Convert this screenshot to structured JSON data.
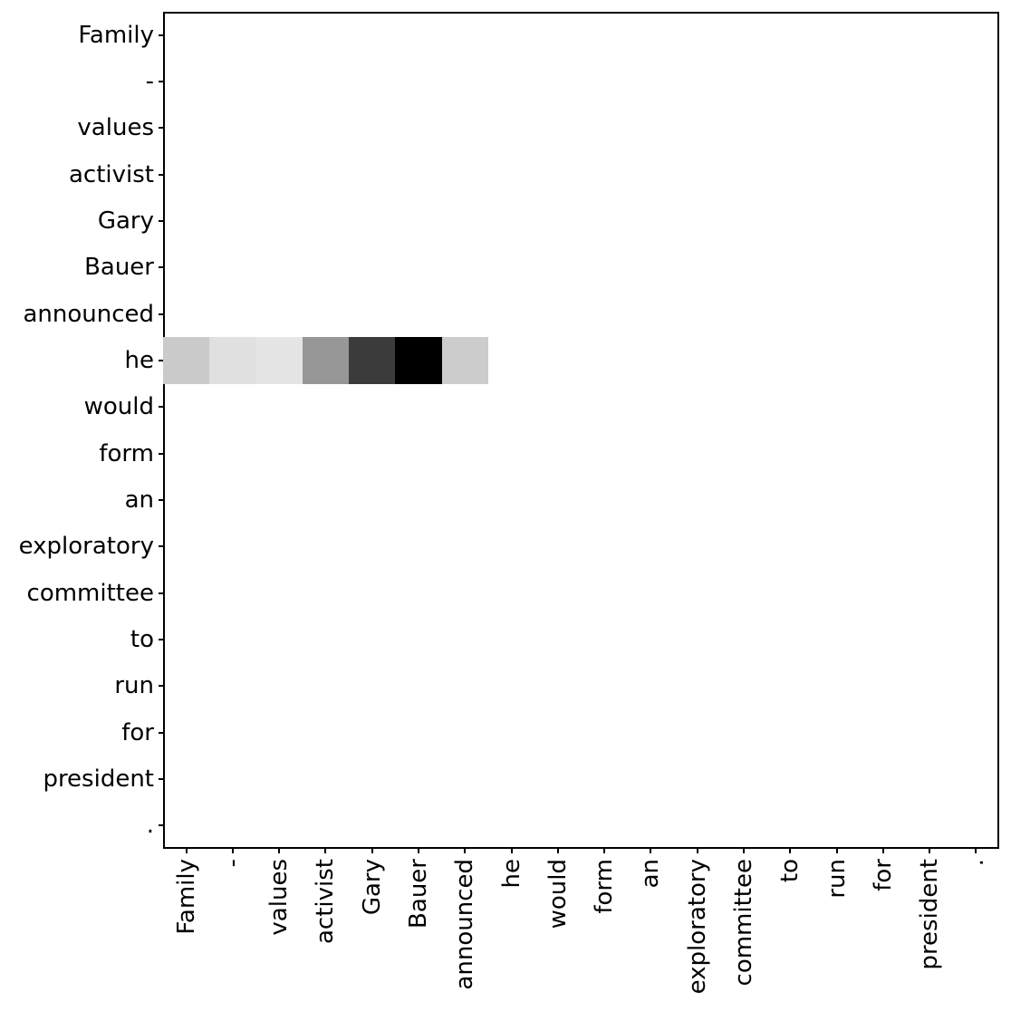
{
  "figure": {
    "background_color": "#ffffff",
    "axis_line_color": "#000000",
    "text_color": "#000000"
  },
  "chart_data": {
    "type": "heatmap",
    "title": "",
    "xlabel": "",
    "ylabel": "",
    "n_rows": 18,
    "n_cols": 18,
    "grid": false,
    "colormap": "Greys",
    "empty_cell_color": "#ffffff",
    "x_tokens": [
      "Family",
      "-",
      "values",
      "activist",
      "Gary",
      "Bauer",
      "announced",
      "he",
      "would",
      "form",
      "an",
      "exploratory",
      "committee",
      "to",
      "run",
      "for",
      "president",
      "."
    ],
    "y_tokens": [
      "Family",
      "-",
      "values",
      "activist",
      "Gary",
      "Bauer",
      "announced",
      "he",
      "would",
      "form",
      "an",
      "exploratory",
      "committee",
      "to",
      "run",
      "for",
      "president",
      "."
    ],
    "highlighted_row": {
      "token": "he",
      "row_index": 7,
      "cells": [
        {
          "col": 0,
          "token": "Family",
          "value": 0.21,
          "color": "#cacaca"
        },
        {
          "col": 1,
          "token": "-",
          "value": 0.12,
          "color": "#e0e0e0"
        },
        {
          "col": 2,
          "token": "values",
          "value": 0.1,
          "color": "#e5e5e5"
        },
        {
          "col": 3,
          "token": "activist",
          "value": 0.41,
          "color": "#979797"
        },
        {
          "col": 4,
          "token": "Gary",
          "value": 0.77,
          "color": "#3b3b3b"
        },
        {
          "col": 5,
          "token": "Bauer",
          "value": 1.0,
          "color": "#000000"
        },
        {
          "col": 6,
          "token": "announced",
          "value": 0.2,
          "color": "#cccccc"
        }
      ]
    }
  }
}
